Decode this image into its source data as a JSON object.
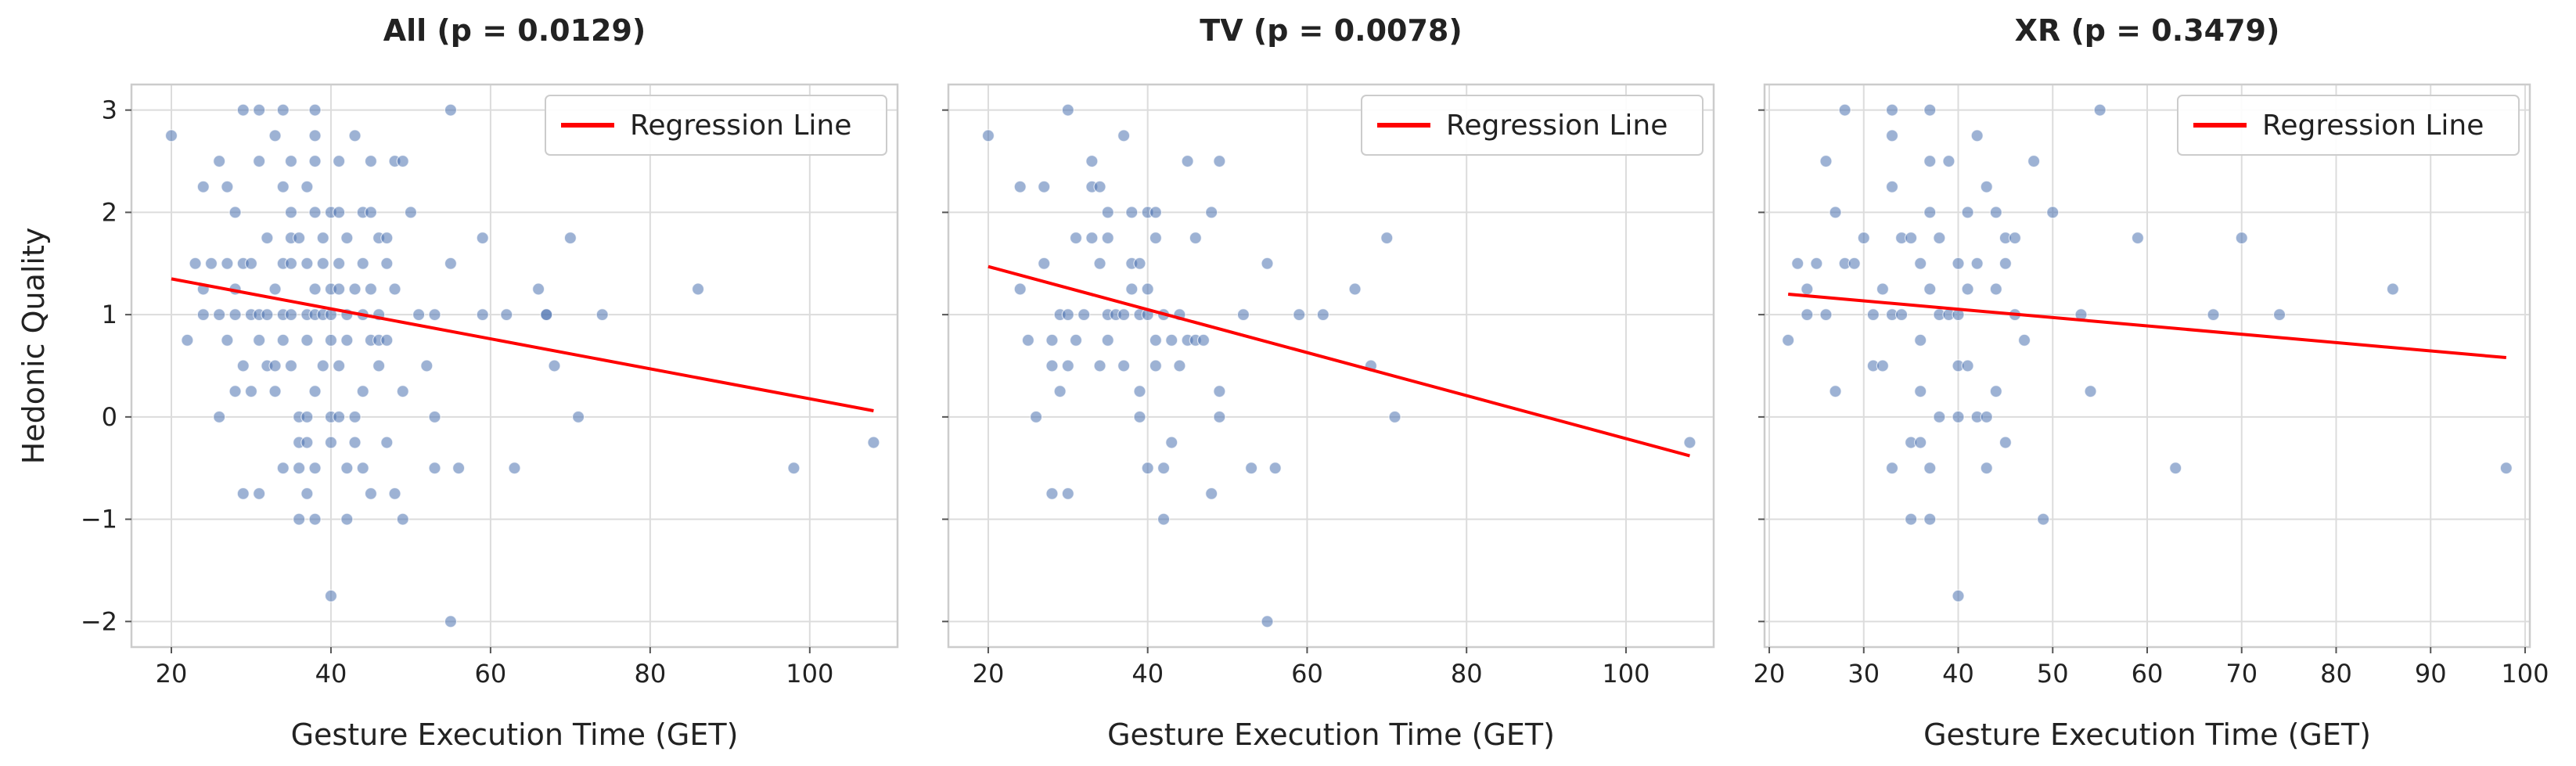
{
  "ylabel": "Hedonic Quality",
  "chart_data": [
    {
      "type": "scatter",
      "title": "All (p = 0.0129)",
      "xlabel": "Gesture Execution Time (GET)",
      "ylabel": "Hedonic Quality",
      "xlim": [
        15,
        111
      ],
      "ylim": [
        -2.25,
        3.25
      ],
      "xticks": [
        20,
        40,
        60,
        80,
        100
      ],
      "yticks": [
        -2,
        -1,
        0,
        1,
        2,
        3
      ],
      "grid": true,
      "legend": {
        "label": "Regression Line",
        "location": "top-right",
        "color": "#ff0000"
      },
      "regression": {
        "x": [
          20,
          108
        ],
        "y": [
          1.35,
          0.06
        ]
      },
      "point_color": "#4c72b0",
      "points": [
        [
          20,
          2.75
        ],
        [
          22,
          0.75
        ],
        [
          23,
          1.5
        ],
        [
          24,
          2.25
        ],
        [
          24,
          1.25
        ],
        [
          24,
          1
        ],
        [
          25,
          1.5
        ],
        [
          26,
          2.5
        ],
        [
          26,
          1
        ],
        [
          26,
          0
        ],
        [
          27,
          0.75
        ],
        [
          27,
          1.5
        ],
        [
          27,
          2.25
        ],
        [
          28,
          0.25
        ],
        [
          28,
          2
        ],
        [
          28,
          1
        ],
        [
          28,
          1.25
        ],
        [
          29,
          1.5
        ],
        [
          29,
          0.5
        ],
        [
          29,
          -0.75
        ],
        [
          29,
          3
        ],
        [
          30,
          1.5
        ],
        [
          30,
          1
        ],
        [
          30,
          0.25
        ],
        [
          31,
          1
        ],
        [
          31,
          0.75
        ],
        [
          31,
          2.5
        ],
        [
          31,
          3
        ],
        [
          31,
          -0.75
        ],
        [
          32,
          0.5
        ],
        [
          32,
          1.75
        ],
        [
          32,
          1
        ],
        [
          33,
          0.25
        ],
        [
          33,
          1.25
        ],
        [
          33,
          0.5
        ],
        [
          33,
          2.75
        ],
        [
          34,
          3
        ],
        [
          34,
          2.25
        ],
        [
          34,
          1.5
        ],
        [
          34,
          1
        ],
        [
          34,
          0.75
        ],
        [
          34,
          -0.5
        ],
        [
          35,
          1.75
        ],
        [
          35,
          1.5
        ],
        [
          35,
          2
        ],
        [
          35,
          1
        ],
        [
          35,
          2.5
        ],
        [
          35,
          0.5
        ],
        [
          36,
          0
        ],
        [
          36,
          -0.25
        ],
        [
          36,
          -1
        ],
        [
          36,
          -0.5
        ],
        [
          36,
          1.75
        ],
        [
          37,
          1.5
        ],
        [
          37,
          2.25
        ],
        [
          37,
          1
        ],
        [
          37,
          0.75
        ],
        [
          37,
          0
        ],
        [
          37,
          -0.25
        ],
        [
          37,
          -0.75
        ],
        [
          38,
          2.75
        ],
        [
          38,
          1
        ],
        [
          38,
          3
        ],
        [
          38,
          2.5
        ],
        [
          38,
          2
        ],
        [
          38,
          1.25
        ],
        [
          38,
          0.25
        ],
        [
          38,
          -1
        ],
        [
          38,
          -0.5
        ],
        [
          39,
          1.5
        ],
        [
          39,
          1
        ],
        [
          39,
          1.75
        ],
        [
          39,
          0.5
        ],
        [
          40,
          2
        ],
        [
          40,
          1.25
        ],
        [
          40,
          0.75
        ],
        [
          40,
          0
        ],
        [
          40,
          1
        ],
        [
          40,
          -0.25
        ],
        [
          40,
          -1.75
        ],
        [
          41,
          2.5
        ],
        [
          41,
          1.5
        ],
        [
          41,
          1.25
        ],
        [
          41,
          2
        ],
        [
          41,
          0.5
        ],
        [
          41,
          0
        ],
        [
          42,
          1
        ],
        [
          42,
          -0.5
        ],
        [
          42,
          1.75
        ],
        [
          42,
          0.75
        ],
        [
          42,
          -1
        ],
        [
          43,
          2.75
        ],
        [
          43,
          0
        ],
        [
          43,
          -0.25
        ],
        [
          43,
          1.25
        ],
        [
          44,
          1.5
        ],
        [
          44,
          2
        ],
        [
          44,
          1
        ],
        [
          44,
          0.25
        ],
        [
          44,
          -0.5
        ],
        [
          45,
          2.5
        ],
        [
          45,
          1.25
        ],
        [
          45,
          0.75
        ],
        [
          45,
          2
        ],
        [
          45,
          -0.75
        ],
        [
          46,
          1.75
        ],
        [
          46,
          1
        ],
        [
          46,
          0.5
        ],
        [
          46,
          0.75
        ],
        [
          47,
          1.5
        ],
        [
          47,
          1.75
        ],
        [
          47,
          0.75
        ],
        [
          47,
          -0.25
        ],
        [
          48,
          2.5
        ],
        [
          48,
          1.25
        ],
        [
          48,
          -0.75
        ],
        [
          49,
          2.5
        ],
        [
          49,
          0.25
        ],
        [
          49,
          -1
        ],
        [
          50,
          2
        ],
        [
          51,
          1
        ],
        [
          52,
          0.5
        ],
        [
          53,
          1
        ],
        [
          53,
          0
        ],
        [
          53,
          -0.5
        ],
        [
          55,
          3
        ],
        [
          55,
          1.5
        ],
        [
          55,
          -2
        ],
        [
          56,
          -0.5
        ],
        [
          59,
          1
        ],
        [
          59,
          1.75
        ],
        [
          62,
          1
        ],
        [
          63,
          -0.5
        ],
        [
          66,
          1.25
        ],
        [
          67,
          1
        ],
        [
          67,
          1
        ],
        [
          68,
          0.5
        ],
        [
          70,
          1.75
        ],
        [
          71,
          0
        ],
        [
          74,
          1
        ],
        [
          86,
          1.25
        ],
        [
          98,
          -0.5
        ],
        [
          108,
          -0.25
        ]
      ]
    },
    {
      "type": "scatter",
      "title": "TV (p = 0.0078)",
      "xlabel": "Gesture Execution Time (GET)",
      "ylabel": "",
      "xlim": [
        15,
        111
      ],
      "ylim": [
        -2.25,
        3.25
      ],
      "xticks": [
        20,
        40,
        60,
        80,
        100
      ],
      "yticks": [
        -2,
        -1,
        0,
        1,
        2,
        3
      ],
      "grid": true,
      "legend": {
        "label": "Regression Line",
        "location": "top-right",
        "color": "#ff0000"
      },
      "regression": {
        "x": [
          20,
          108
        ],
        "y": [
          1.47,
          -0.38
        ]
      },
      "point_color": "#4c72b0",
      "points": [
        [
          20,
          2.75
        ],
        [
          24,
          2.25
        ],
        [
          24,
          1.25
        ],
        [
          25,
          0.75
        ],
        [
          26,
          0
        ],
        [
          27,
          1.5
        ],
        [
          27,
          2.25
        ],
        [
          28,
          0.75
        ],
        [
          28,
          0.5
        ],
        [
          28,
          -0.75
        ],
        [
          29,
          0.25
        ],
        [
          29,
          1
        ],
        [
          30,
          3
        ],
        [
          30,
          1
        ],
        [
          30,
          0.5
        ],
        [
          30,
          -0.75
        ],
        [
          31,
          1.75
        ],
        [
          31,
          0.75
        ],
        [
          32,
          1
        ],
        [
          33,
          2.5
        ],
        [
          33,
          2.25
        ],
        [
          33,
          1.75
        ],
        [
          34,
          1.5
        ],
        [
          34,
          2.25
        ],
        [
          34,
          0.5
        ],
        [
          35,
          2
        ],
        [
          35,
          1.75
        ],
        [
          35,
          1
        ],
        [
          35,
          0.75
        ],
        [
          36,
          1
        ],
        [
          37,
          2.75
        ],
        [
          37,
          1
        ],
        [
          37,
          0.5
        ],
        [
          38,
          1.5
        ],
        [
          38,
          2
        ],
        [
          38,
          1.25
        ],
        [
          39,
          1
        ],
        [
          39,
          1.5
        ],
        [
          39,
          0.25
        ],
        [
          39,
          0
        ],
        [
          40,
          2
        ],
        [
          40,
          1
        ],
        [
          40,
          1.25
        ],
        [
          40,
          -0.5
        ],
        [
          41,
          1.75
        ],
        [
          41,
          2
        ],
        [
          41,
          0.75
        ],
        [
          41,
          0.5
        ],
        [
          42,
          1
        ],
        [
          42,
          -0.5
        ],
        [
          42,
          -1
        ],
        [
          43,
          -0.25
        ],
        [
          43,
          0.75
        ],
        [
          44,
          0.5
        ],
        [
          44,
          1
        ],
        [
          45,
          2.5
        ],
        [
          45,
          0.75
        ],
        [
          46,
          1.75
        ],
        [
          46,
          0.75
        ],
        [
          47,
          0.75
        ],
        [
          48,
          2
        ],
        [
          48,
          -0.75
        ],
        [
          49,
          2.5
        ],
        [
          49,
          0.25
        ],
        [
          49,
          0
        ],
        [
          52,
          1
        ],
        [
          53,
          -0.5
        ],
        [
          55,
          1.5
        ],
        [
          55,
          -2
        ],
        [
          56,
          -0.5
        ],
        [
          59,
          1
        ],
        [
          62,
          1
        ],
        [
          66,
          1.25
        ],
        [
          68,
          0.5
        ],
        [
          70,
          1.75
        ],
        [
          71,
          0
        ],
        [
          108,
          -0.25
        ]
      ]
    },
    {
      "type": "scatter",
      "title": "XR (p = 0.3479)",
      "xlabel": "Gesture Execution Time (GET)",
      "ylabel": "",
      "xlim": [
        19.5,
        100.5
      ],
      "ylim": [
        -2.25,
        3.25
      ],
      "xticks": [
        20,
        30,
        40,
        50,
        60,
        70,
        80,
        90,
        100
      ],
      "yticks": [
        -2,
        -1,
        0,
        1,
        2,
        3
      ],
      "grid": true,
      "legend": {
        "label": "Regression Line",
        "location": "top-right",
        "color": "#ff0000"
      },
      "regression": {
        "x": [
          22,
          98
        ],
        "y": [
          1.2,
          0.58
        ]
      },
      "point_color": "#4c72b0",
      "points": [
        [
          22,
          0.75
        ],
        [
          23,
          1.5
        ],
        [
          24,
          1
        ],
        [
          24,
          1.25
        ],
        [
          25,
          1.5
        ],
        [
          26,
          2.5
        ],
        [
          26,
          1
        ],
        [
          27,
          0.25
        ],
        [
          27,
          2
        ],
        [
          28,
          1.5
        ],
        [
          28,
          3
        ],
        [
          29,
          1.5
        ],
        [
          30,
          1.75
        ],
        [
          31,
          1
        ],
        [
          31,
          0.5
        ],
        [
          32,
          1.25
        ],
        [
          32,
          0.5
        ],
        [
          33,
          1
        ],
        [
          33,
          3
        ],
        [
          33,
          2.75
        ],
        [
          33,
          2.25
        ],
        [
          33,
          -0.5
        ],
        [
          34,
          1.75
        ],
        [
          34,
          1
        ],
        [
          35,
          1.75
        ],
        [
          35,
          -0.25
        ],
        [
          35,
          -1
        ],
        [
          36,
          1.5
        ],
        [
          36,
          0.75
        ],
        [
          36,
          -0.25
        ],
        [
          36,
          0.25
        ],
        [
          37,
          3
        ],
        [
          37,
          2.5
        ],
        [
          37,
          2
        ],
        [
          37,
          1.25
        ],
        [
          37,
          -0.5
        ],
        [
          37,
          -1
        ],
        [
          38,
          1
        ],
        [
          38,
          1.75
        ],
        [
          38,
          0
        ],
        [
          39,
          1
        ],
        [
          39,
          2.5
        ],
        [
          40,
          1.5
        ],
        [
          40,
          1
        ],
        [
          40,
          0.5
        ],
        [
          40,
          0
        ],
        [
          40,
          -1.75
        ],
        [
          41,
          2
        ],
        [
          41,
          1.25
        ],
        [
          41,
          0.5
        ],
        [
          42,
          2.75
        ],
        [
          42,
          1.5
        ],
        [
          42,
          0
        ],
        [
          43,
          2.25
        ],
        [
          43,
          0
        ],
        [
          43,
          -0.5
        ],
        [
          44,
          2
        ],
        [
          44,
          1.25
        ],
        [
          44,
          0.25
        ],
        [
          45,
          1.5
        ],
        [
          45,
          1.75
        ],
        [
          45,
          -0.25
        ],
        [
          46,
          1.75
        ],
        [
          46,
          1
        ],
        [
          47,
          0.75
        ],
        [
          48,
          2.5
        ],
        [
          49,
          -1
        ],
        [
          50,
          2
        ],
        [
          53,
          1
        ],
        [
          54,
          0.25
        ],
        [
          55,
          3
        ],
        [
          59,
          1.75
        ],
        [
          63,
          -0.5
        ],
        [
          67,
          1
        ],
        [
          70,
          1.75
        ],
        [
          74,
          1
        ],
        [
          86,
          1.25
        ],
        [
          98,
          -0.5
        ]
      ]
    }
  ]
}
